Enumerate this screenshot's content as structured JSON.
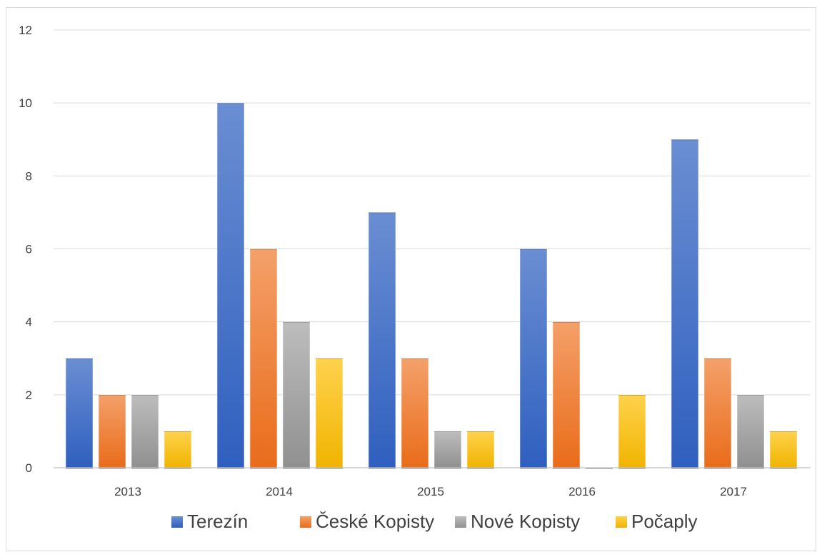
{
  "chart_data": {
    "type": "bar",
    "categories": [
      "2013",
      "2014",
      "2015",
      "2016",
      "2017"
    ],
    "series": [
      {
        "name": "Terezín",
        "values": [
          3,
          10,
          7,
          6,
          9
        ]
      },
      {
        "name": "České Kopisty",
        "values": [
          2,
          6,
          3,
          4,
          3
        ]
      },
      {
        "name": "Nové Kopisty",
        "values": [
          2,
          4,
          1,
          0,
          2
        ]
      },
      {
        "name": "Počaply",
        "values": [
          1,
          3,
          1,
          2,
          1
        ]
      }
    ],
    "y_ticks": [
      "0",
      "2",
      "4",
      "6",
      "8",
      "10",
      "12"
    ],
    "ylim": [
      0,
      12
    ],
    "grid": true,
    "legend_position": "bottom",
    "colors": {
      "Terezín": {
        "top": "#6a8ed2",
        "bottom": "#2f5fbf"
      },
      "České Kopisty": {
        "top": "#f4a06a",
        "bottom": "#e96c1a"
      },
      "Nové Kopisty": {
        "top": "#bdbdbd",
        "bottom": "#909090"
      },
      "Počaply": {
        "top": "#ffd24d",
        "bottom": "#f0b400"
      }
    }
  }
}
